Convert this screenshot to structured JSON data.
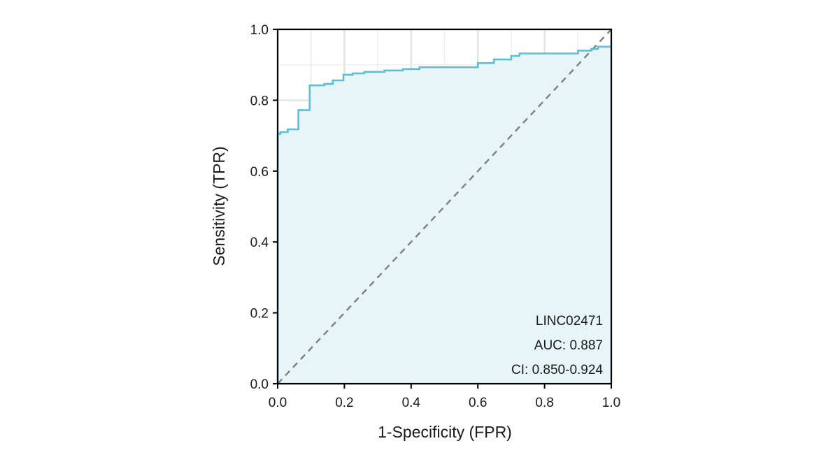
{
  "chart_data": {
    "type": "line",
    "title": "",
    "xlabel": "1-Specificity (FPR)",
    "ylabel": "Sensitivity (TPR)",
    "xlim": [
      0,
      1
    ],
    "ylim": [
      0,
      1
    ],
    "x_ticks": [
      0.0,
      0.2,
      0.4,
      0.6,
      0.8,
      1.0
    ],
    "y_ticks": [
      0.0,
      0.2,
      0.4,
      0.6,
      0.8,
      1.0
    ],
    "x_tick_labels": [
      "0.0",
      "0.2",
      "0.4",
      "0.6",
      "0.8",
      "1.0"
    ],
    "y_tick_labels": [
      "0.0",
      "0.2",
      "0.4",
      "0.6",
      "0.8",
      "1.0"
    ],
    "grid": true,
    "series": [
      {
        "curve": "roc",
        "color": "#5bbfd6",
        "fill": "#e8f5f7",
        "x": [
          0.0,
          0.0,
          0.008,
          0.008,
          0.03,
          0.03,
          0.062,
          0.062,
          0.096,
          0.096,
          0.14,
          0.14,
          0.165,
          0.165,
          0.197,
          0.197,
          0.225,
          0.225,
          0.26,
          0.26,
          0.32,
          0.32,
          0.375,
          0.375,
          0.425,
          0.425,
          0.6,
          0.6,
          0.648,
          0.648,
          0.7,
          0.7,
          0.725,
          0.725,
          0.9,
          0.9,
          0.94,
          0.94,
          0.96,
          0.96,
          1.0
        ],
        "y": [
          0.0,
          0.705,
          0.705,
          0.71,
          0.71,
          0.718,
          0.718,
          0.772,
          0.772,
          0.842,
          0.842,
          0.846,
          0.846,
          0.856,
          0.856,
          0.872,
          0.872,
          0.876,
          0.876,
          0.88,
          0.88,
          0.884,
          0.884,
          0.888,
          0.888,
          0.893,
          0.893,
          0.905,
          0.905,
          0.915,
          0.915,
          0.925,
          0.925,
          0.932,
          0.932,
          0.94,
          0.94,
          0.945,
          0.945,
          0.951,
          0.951
        ]
      },
      {
        "curve": "reference-diagonal",
        "color": "#7f7f7f",
        "x": [
          0,
          1
        ],
        "y": [
          0,
          1
        ]
      }
    ],
    "annotations": {
      "marker": "LINC02471",
      "auc": "AUC: 0.887",
      "ci": "CI: 0.850-0.924"
    }
  }
}
